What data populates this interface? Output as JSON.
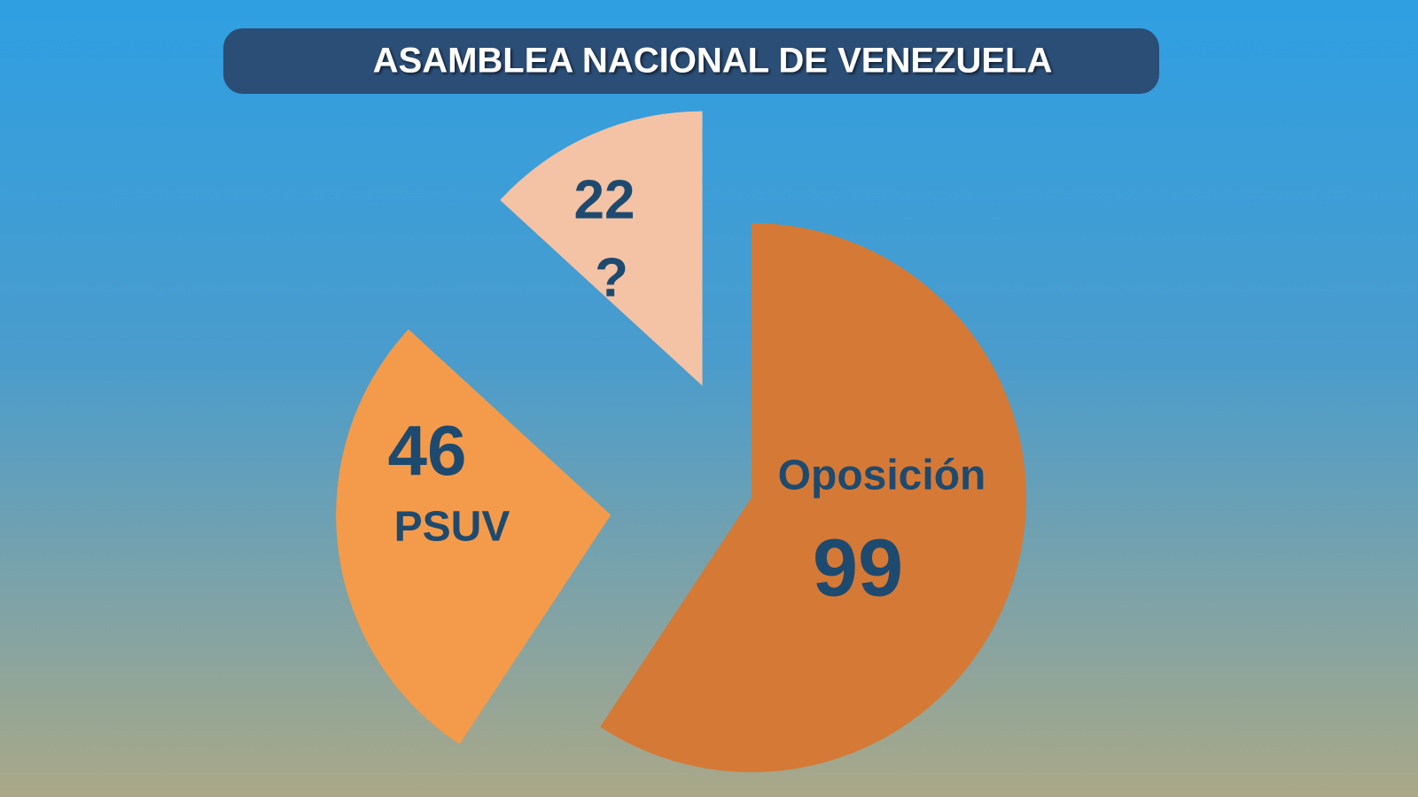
{
  "chart_data": {
    "type": "pie",
    "title": "ASAMBLEA NACIONAL DE VENEZUELA",
    "categories": [
      "Oposición",
      "PSUV",
      "?"
    ],
    "values": [
      99,
      46,
      22
    ],
    "colors": [
      "#d47a36",
      "#f39a4b",
      "#f4c3a6"
    ]
  }
}
